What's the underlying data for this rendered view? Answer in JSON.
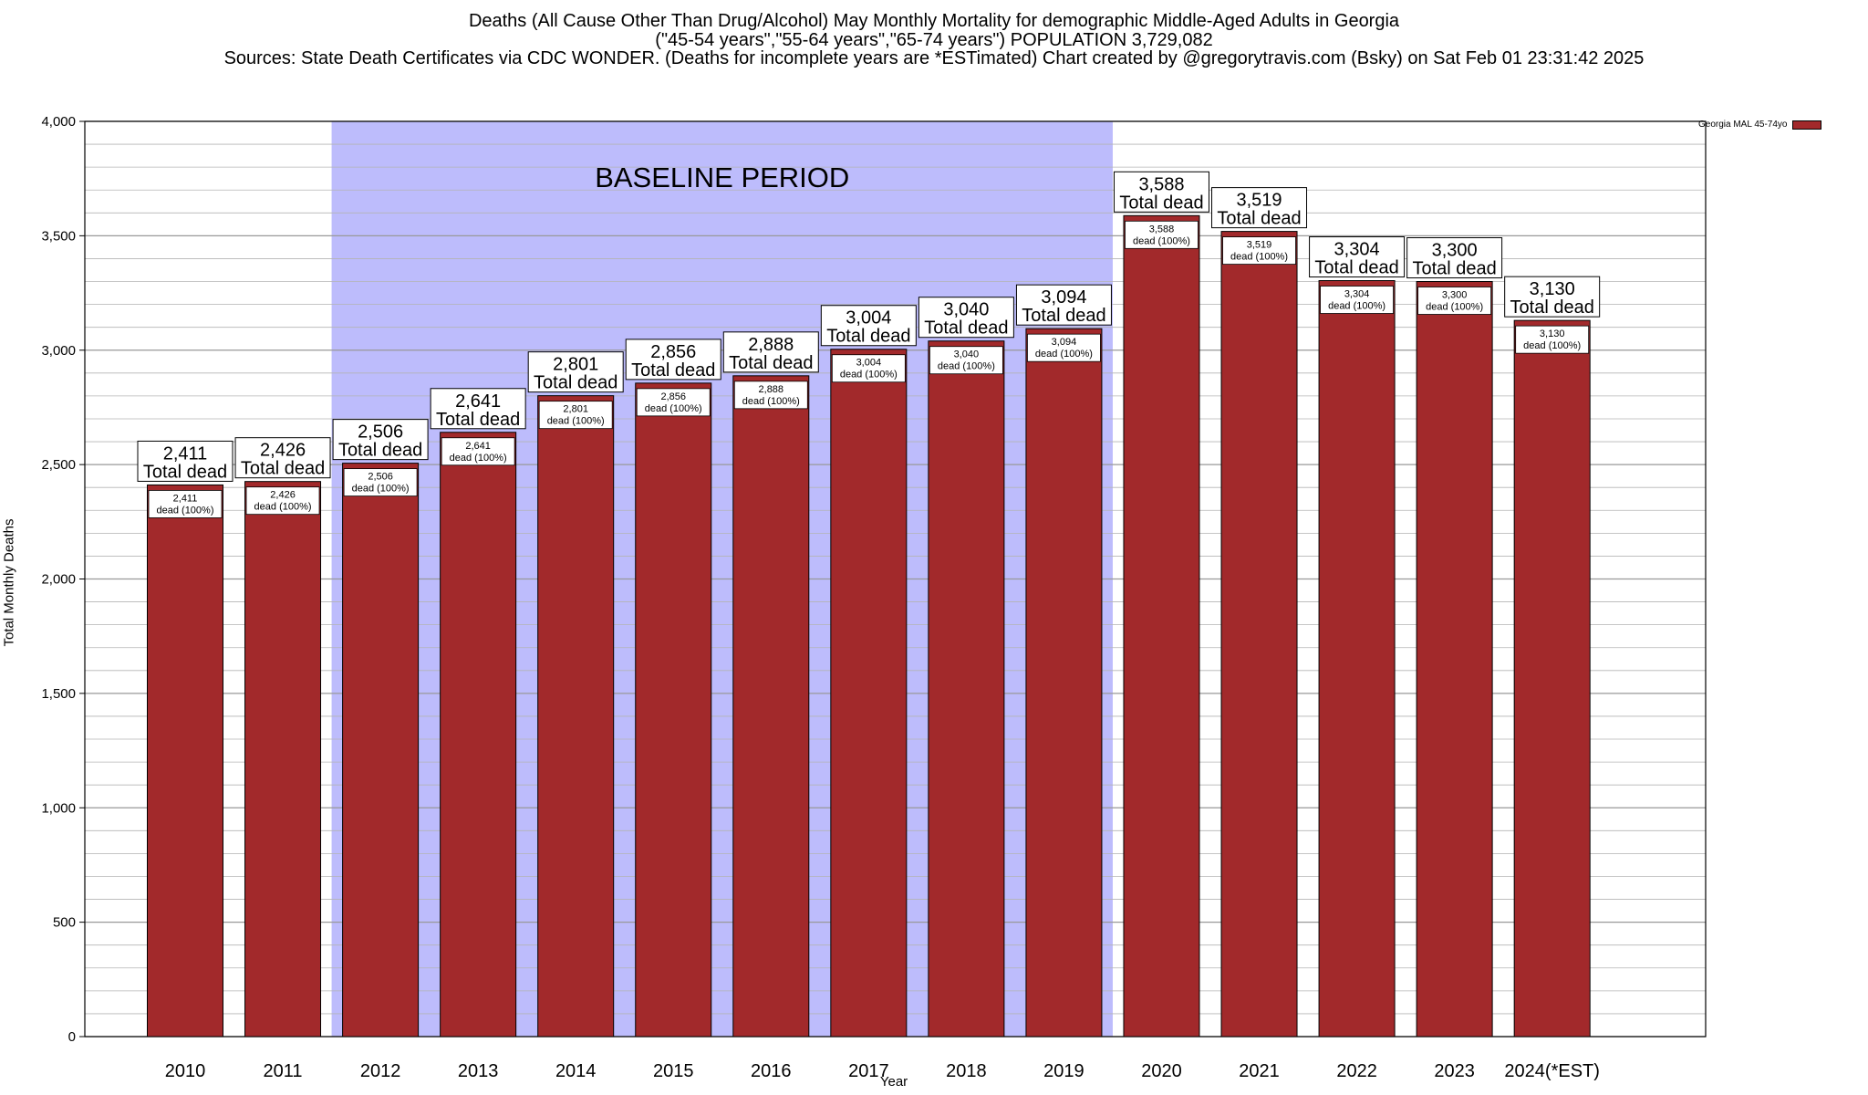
{
  "title": {
    "line1": "Deaths (All Cause Other Than Drug/Alcohol) May Monthly Mortality for demographic Middle-Aged Adults in Georgia",
    "line2": "(\"45-54 years\",\"55-64 years\",\"65-74 years\") POPULATION 3,729,082",
    "line3": "Sources: State Death Certificates via CDC WONDER. (Deaths for incomplete years are *ESTimated)              Chart created by @gregorytravis.com (Bsky) on Sat Feb 01 23:31:42 2025"
  },
  "legend": {
    "label": "Georgia MAL 45-74yo"
  },
  "colors": {
    "bar": "#a2292b",
    "baseline": "#bdbcfc",
    "gridline": "#b4b4b4"
  },
  "chart_data": {
    "type": "bar",
    "categories": [
      "2010",
      "2011",
      "2012",
      "2013",
      "2014",
      "2015",
      "2016",
      "2017",
      "2018",
      "2019",
      "2020",
      "2021",
      "2022",
      "2023",
      "2024(*EST)"
    ],
    "series": [
      {
        "name": "Georgia MAL 45-74yo",
        "values": [
          2411,
          2426,
          2506,
          2641,
          2801,
          2856,
          2888,
          3004,
          3040,
          3094,
          3588,
          3519,
          3304,
          3300,
          3130
        ]
      }
    ],
    "big_labels": [
      "2,411",
      "2,426",
      "2,506",
      "2,641",
      "2,801",
      "2,856",
      "2,888",
      "3,004",
      "3,040",
      "3,094",
      "3,588",
      "3,519",
      "3,304",
      "3,300",
      "3,130"
    ],
    "big_label_suffix": "Total dead",
    "inner_label_suffix": "dead (100%)",
    "xlabel": "Year",
    "ylabel": "Total Monthly Deaths",
    "ylim": [
      0,
      4000
    ],
    "yticks": [
      0,
      500,
      1000,
      1500,
      2000,
      2500,
      3000,
      3500,
      4000
    ],
    "ytick_labels": [
      "0",
      "500",
      "1,000",
      "1,500",
      "2,000",
      "2,500",
      "3,000",
      "3,500",
      "4,000"
    ],
    "baseline_period": {
      "label": "BASELINE PERIOD",
      "start": "2012",
      "end": "2019"
    },
    "grid": true,
    "legend_position": "top-right"
  }
}
